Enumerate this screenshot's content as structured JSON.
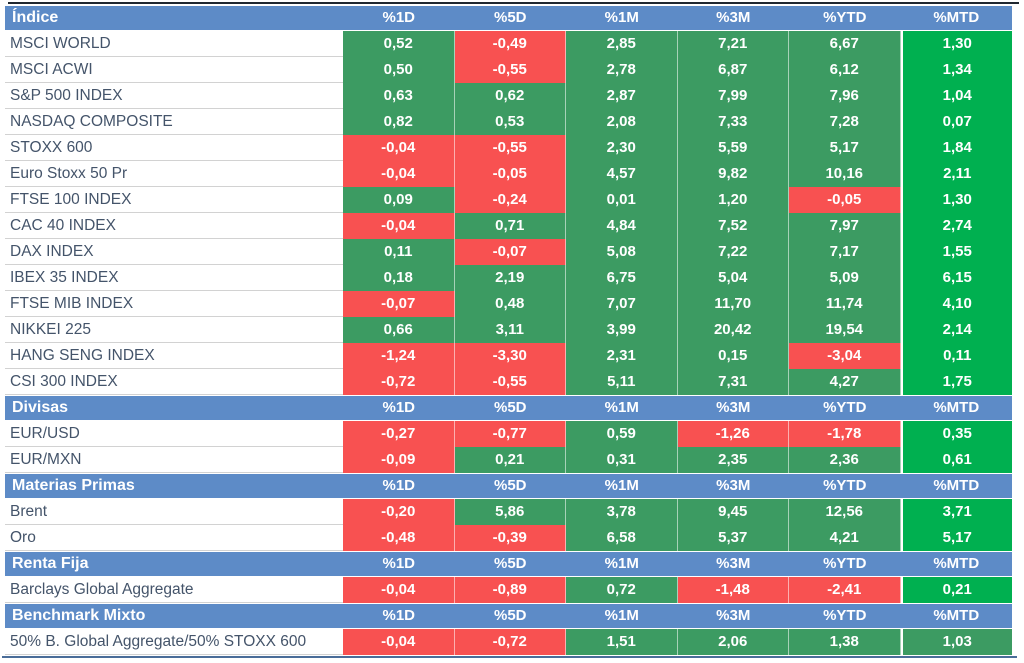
{
  "colors": {
    "header_blue": "#5d8bc7",
    "positive_green": "#3c9b62",
    "mtd_bright_green": "#00b050",
    "negative_red": "#f85151",
    "label_text": "#44546a",
    "top_rule": "#1f2730",
    "bottom_rule": "#4a6d99"
  },
  "chart_data": {
    "type": "table",
    "value_columns": [
      "%1D",
      "%5D",
      "%1M",
      "%3M",
      "%YTD",
      "%MTD"
    ],
    "sections": [
      {
        "title": "Índice",
        "rows": [
          {
            "label": "MSCI WORLD",
            "values": [
              "0,52",
              "-0,49",
              "2,85",
              "7,21",
              "6,67",
              "1,30"
            ]
          },
          {
            "label": "MSCI ACWI",
            "values": [
              "0,50",
              "-0,55",
              "2,78",
              "6,87",
              "6,12",
              "1,34"
            ]
          },
          {
            "label": "S&P 500 INDEX",
            "values": [
              "0,63",
              "0,62",
              "2,87",
              "7,99",
              "7,96",
              "1,04"
            ]
          },
          {
            "label": "NASDAQ COMPOSITE",
            "values": [
              "0,82",
              "0,53",
              "2,08",
              "7,33",
              "7,28",
              "0,07"
            ]
          },
          {
            "label": "STOXX 600",
            "values": [
              "-0,04",
              "-0,55",
              "2,30",
              "5,59",
              "5,17",
              "1,84"
            ]
          },
          {
            "label": "Euro Stoxx 50 Pr",
            "values": [
              "-0,04",
              "-0,05",
              "4,57",
              "9,82",
              "10,16",
              "2,11"
            ]
          },
          {
            "label": "FTSE 100 INDEX",
            "values": [
              "0,09",
              "-0,24",
              "0,01",
              "1,20",
              "-0,05",
              "1,30"
            ]
          },
          {
            "label": "CAC 40 INDEX",
            "values": [
              "-0,04",
              "0,71",
              "4,84",
              "7,52",
              "7,97",
              "2,74"
            ]
          },
          {
            "label": "DAX INDEX",
            "values": [
              "0,11",
              "-0,07",
              "5,08",
              "7,22",
              "7,17",
              "1,55"
            ]
          },
          {
            "label": "IBEX 35 INDEX",
            "values": [
              "0,18",
              "2,19",
              "6,75",
              "5,04",
              "5,09",
              "6,15"
            ]
          },
          {
            "label": "FTSE MIB INDEX",
            "values": [
              "-0,07",
              "0,48",
              "7,07",
              "11,70",
              "11,74",
              "4,10"
            ]
          },
          {
            "label": "NIKKEI 225",
            "values": [
              "0,66",
              "3,11",
              "3,99",
              "20,42",
              "19,54",
              "2,14"
            ]
          },
          {
            "label": "HANG SENG INDEX",
            "values": [
              "-1,24",
              "-3,30",
              "2,31",
              "0,15",
              "-3,04",
              "0,11"
            ]
          },
          {
            "label": "CSI 300 INDEX",
            "values": [
              "-0,72",
              "-0,55",
              "5,11",
              "7,31",
              "4,27",
              "1,75"
            ]
          }
        ]
      },
      {
        "title": "Divisas",
        "rows": [
          {
            "label": "EUR/USD",
            "values": [
              "-0,27",
              "-0,77",
              "0,59",
              "-1,26",
              "-1,78",
              "0,35"
            ]
          },
          {
            "label": "EUR/MXN",
            "values": [
              "-0,09",
              "0,21",
              "0,31",
              "2,35",
              "2,36",
              "0,61"
            ]
          }
        ]
      },
      {
        "title": "Materias Primas",
        "rows": [
          {
            "label": "Brent",
            "values": [
              "-0,20",
              "5,86",
              "3,78",
              "9,45",
              "12,56",
              "3,71"
            ]
          },
          {
            "label": "Oro",
            "values": [
              "-0,48",
              "-0,39",
              "6,58",
              "5,37",
              "4,21",
              "5,17"
            ]
          }
        ]
      },
      {
        "title": "Renta Fija",
        "rows": [
          {
            "label": "Barclays Global Aggregate",
            "values": [
              "-0,04",
              "-0,89",
              "0,72",
              "-1,48",
              "-2,41",
              "0,21"
            ]
          }
        ]
      },
      {
        "title": "Benchmark Mixto",
        "rows": [
          {
            "label": "50% B. Global Aggregate/50% STOXX 600",
            "values": [
              "-0,04",
              "-0,72",
              "1,51",
              "2,06",
              "1,38",
              "1,03"
            ],
            "mtd_bright": false
          }
        ]
      }
    ]
  }
}
